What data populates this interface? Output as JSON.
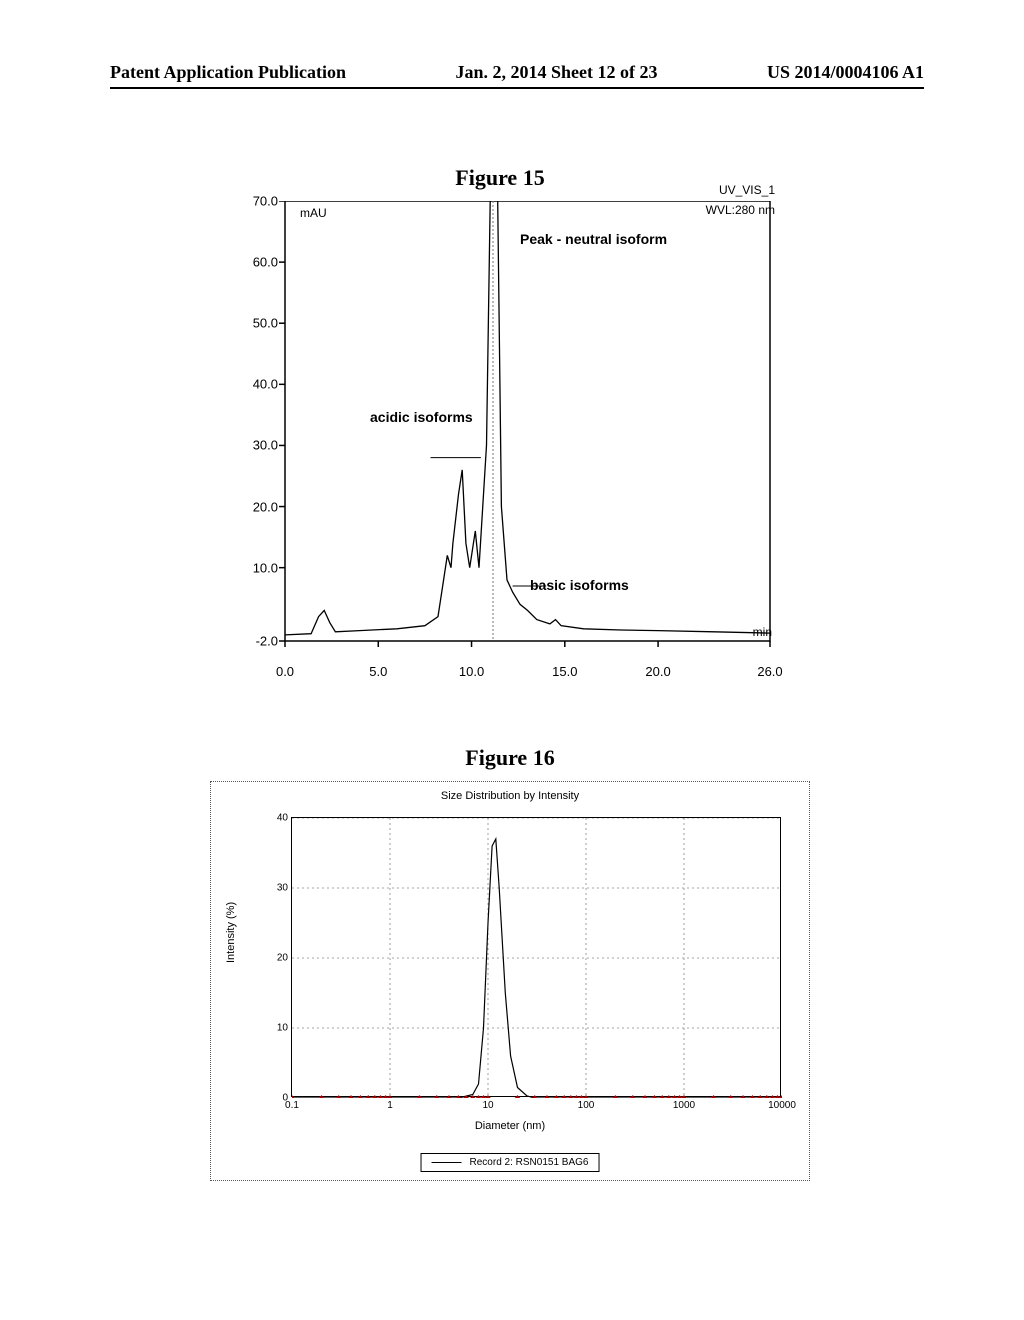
{
  "header": {
    "left": "Patent Application Publication",
    "center": "Jan. 2, 2014  Sheet 12 of 23",
    "right": "US 2014/0004106 A1"
  },
  "figure15": {
    "title": "Figure 15",
    "type": "line",
    "y_unit": "mAU",
    "x_unit": "min",
    "detector_label": "UV_VIS_1",
    "wavelength_label": "WVL:280 nm",
    "annotations": {
      "peak": "Peak - neutral isoform",
      "acidic": "acidic isoforms",
      "basic": "basic isoforms"
    },
    "xlim": [
      0.0,
      26.0
    ],
    "ylim": [
      -2.0,
      70.0
    ],
    "yticks": [
      "70.0",
      "60.0",
      "50.0",
      "40.0",
      "30.0",
      "20.0",
      "10.0",
      "-2.0"
    ],
    "ytick_vals": [
      70.0,
      60.0,
      50.0,
      40.0,
      30.0,
      20.0,
      10.0,
      -2.0
    ],
    "xticks": [
      "0.0",
      "5.0",
      "10.0",
      "15.0",
      "20.0",
      "26.0"
    ],
    "xtick_vals": [
      0.0,
      5.0,
      10.0,
      15.0,
      20.0,
      26.0
    ],
    "trace": [
      [
        0.0,
        -1.0
      ],
      [
        1.4,
        -0.8
      ],
      [
        1.8,
        2.0
      ],
      [
        2.1,
        3.0
      ],
      [
        2.4,
        1.0
      ],
      [
        2.7,
        -0.5
      ],
      [
        4.0,
        -0.3
      ],
      [
        6.0,
        0.0
      ],
      [
        7.5,
        0.5
      ],
      [
        8.2,
        2.0
      ],
      [
        8.5,
        8.0
      ],
      [
        8.7,
        12.0
      ],
      [
        8.9,
        10.0
      ],
      [
        9.0,
        14.0
      ],
      [
        9.3,
        22.0
      ],
      [
        9.5,
        26.0
      ],
      [
        9.7,
        14.0
      ],
      [
        9.9,
        10.0
      ],
      [
        10.2,
        16.0
      ],
      [
        10.4,
        10.0
      ],
      [
        10.8,
        30.0
      ],
      [
        11.0,
        70.0
      ],
      [
        11.1,
        200.0
      ],
      [
        11.3,
        200.0
      ],
      [
        11.4,
        70.0
      ],
      [
        11.6,
        20.0
      ],
      [
        11.9,
        8.0
      ],
      [
        12.2,
        6.0
      ],
      [
        12.6,
        4.0
      ],
      [
        13.0,
        3.0
      ],
      [
        13.5,
        1.5
      ],
      [
        14.2,
        0.8
      ],
      [
        14.5,
        1.5
      ],
      [
        14.8,
        0.5
      ],
      [
        16.0,
        0.0
      ],
      [
        18.0,
        -0.2
      ],
      [
        20.0,
        -0.3
      ],
      [
        23.0,
        -0.5
      ],
      [
        26.0,
        -0.7
      ]
    ],
    "acidic_bar_x": [
      7.8,
      10.5
    ],
    "basic_bar_x": [
      12.2,
      14.0
    ],
    "vline_x": 11.15,
    "plot_color": "#000000",
    "background_color": "#ffffff"
  },
  "figure16": {
    "title": "Figure 16",
    "chart_title": "Size Distribution by Intensity",
    "type": "line",
    "ylabel": "Intensity (%)",
    "xlabel": "Diameter (nm)",
    "legend": "Record 2: RSN0151 BAG6",
    "xlim": [
      0.1,
      10000
    ],
    "ylim": [
      0,
      40
    ],
    "yticks": [
      "0",
      "10",
      "20",
      "30",
      "40"
    ],
    "ytick_vals": [
      0,
      10,
      20,
      30,
      40
    ],
    "xticks": [
      "0.1",
      "1",
      "10",
      "100",
      "1000",
      "10000"
    ],
    "xtick_vals": [
      0.1,
      1,
      10,
      100,
      1000,
      10000
    ],
    "trace": [
      [
        0.1,
        0
      ],
      [
        1,
        0
      ],
      [
        5,
        0
      ],
      [
        7,
        0.5
      ],
      [
        8,
        2
      ],
      [
        9,
        10
      ],
      [
        10,
        25
      ],
      [
        11,
        36
      ],
      [
        12,
        37
      ],
      [
        13,
        30
      ],
      [
        15,
        15
      ],
      [
        17,
        6
      ],
      [
        20,
        1.5
      ],
      [
        25,
        0.3
      ],
      [
        30,
        0
      ],
      [
        100,
        0
      ],
      [
        1000,
        0
      ],
      [
        10000,
        0
      ]
    ],
    "grid_color": "#888888",
    "plot_color": "#000000"
  }
}
